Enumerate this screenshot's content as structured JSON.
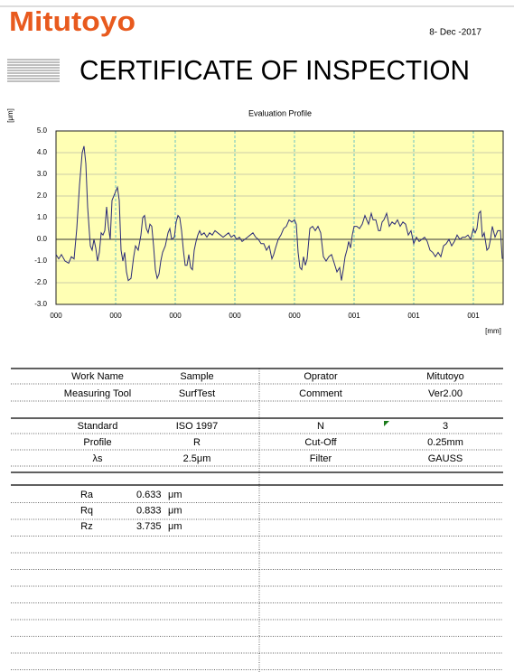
{
  "header": {
    "logo": "Mitutoyo",
    "date": "8- Dec -2017",
    "title": "CERTIFICATE OF INSPECTION"
  },
  "chart_data": {
    "type": "line",
    "title": "Evaluation Profile",
    "x_label": "[mm]",
    "y_label": "[μm]",
    "color": "#2b2b78",
    "plot_background": "#ffffb4",
    "grid": true,
    "xlim": [
      0,
      495
    ],
    "ylim": [
      -3,
      5
    ],
    "xticks": [
      {
        "value": 0,
        "label": "000"
      },
      {
        "value": 66,
        "label": "000"
      },
      {
        "value": 132,
        "label": "000"
      },
      {
        "value": 198,
        "label": "000"
      },
      {
        "value": 264,
        "label": "000"
      },
      {
        "value": 330,
        "label": "001"
      },
      {
        "value": 396,
        "label": "001"
      },
      {
        "value": 462,
        "label": "001"
      }
    ],
    "yticks": [
      {
        "value": 5,
        "label": "5.0"
      },
      {
        "value": 4,
        "label": "4.0"
      },
      {
        "value": 3,
        "label": "3.0"
      },
      {
        "value": 2,
        "label": "2.0"
      },
      {
        "value": 1,
        "label": "1.0"
      },
      {
        "value": 0,
        "label": "0.0"
      },
      {
        "value": -1,
        "label": "-1.0"
      },
      {
        "value": -2,
        "label": "-2.0"
      },
      {
        "value": -3,
        "label": "-3.0"
      }
    ],
    "x": [
      0,
      3,
      6,
      10,
      14,
      17,
      20,
      23,
      26,
      29,
      31,
      33,
      35,
      38,
      40,
      42,
      44,
      46,
      48,
      50,
      52,
      54,
      56,
      58,
      60,
      62,
      64,
      66,
      68,
      70,
      72,
      74,
      76,
      78,
      80,
      83,
      86,
      88,
      91,
      94,
      96,
      98,
      100,
      102,
      104,
      106,
      108,
      110,
      112,
      114,
      116,
      118,
      121,
      124,
      126,
      128,
      131,
      133,
      135,
      137,
      139,
      141,
      143,
      145,
      147,
      149,
      151,
      153,
      155,
      157,
      159,
      161,
      164,
      167,
      170,
      173,
      176,
      179,
      182,
      185,
      188,
      191,
      194,
      197,
      200,
      203,
      206,
      209,
      212,
      215,
      218,
      221,
      224,
      227,
      230,
      233,
      236,
      239,
      241,
      243,
      246,
      249,
      252,
      255,
      258,
      261,
      264,
      266,
      268,
      270,
      272,
      274,
      276,
      278,
      281,
      284,
      287,
      290,
      293,
      296,
      299,
      302,
      305,
      308,
      311,
      314,
      316,
      318,
      320,
      322,
      324,
      326,
      328,
      330,
      333,
      336,
      339,
      342,
      344,
      346,
      349,
      351,
      354,
      357,
      359,
      361,
      363,
      366,
      369,
      372,
      375,
      378,
      381,
      384,
      387,
      390,
      393,
      396,
      399,
      402,
      405,
      408,
      411,
      414,
      417,
      420,
      423,
      426,
      429,
      432,
      435,
      438,
      441,
      444,
      447,
      450,
      453,
      456,
      459,
      462,
      464,
      466,
      468,
      470,
      472,
      474,
      477,
      479,
      481,
      483,
      486,
      489,
      492,
      494
    ],
    "values": [
      -0.7,
      -0.9,
      -0.7,
      -1.0,
      -1.1,
      -0.8,
      -0.9,
      0.5,
      2.5,
      4.0,
      4.3,
      3.5,
      1.5,
      -0.3,
      -0.5,
      0.0,
      -0.4,
      -1.0,
      -0.6,
      0.3,
      0.2,
      0.4,
      1.5,
      0.6,
      0.0,
      1.8,
      2.0,
      2.2,
      2.4,
      1.8,
      -0.5,
      -1.0,
      -0.6,
      -1.5,
      -1.9,
      -1.8,
      -0.8,
      -0.3,
      -0.5,
      0.2,
      1.0,
      1.1,
      0.5,
      0.3,
      0.7,
      0.6,
      -0.3,
      -1.4,
      -1.8,
      -1.6,
      -1.0,
      -0.6,
      -0.3,
      0.3,
      0.5,
      0.0,
      0.1,
      0.8,
      1.1,
      1.0,
      0.4,
      -0.5,
      -1.2,
      -1.2,
      -0.7,
      -1.3,
      -1.4,
      -0.5,
      -0.1,
      0.2,
      0.4,
      0.2,
      0.3,
      0.1,
      0.3,
      0.2,
      0.4,
      0.3,
      0.2,
      0.1,
      0.2,
      0.3,
      0.1,
      0.2,
      0.0,
      0.1,
      -0.1,
      0.0,
      0.1,
      0.2,
      0.3,
      0.1,
      0.0,
      -0.2,
      -0.2,
      -0.5,
      -0.3,
      -0.9,
      -0.7,
      -0.4,
      0.0,
      0.2,
      0.5,
      0.6,
      0.9,
      0.8,
      0.9,
      0.7,
      -0.6,
      -1.3,
      -1.4,
      -0.8,
      -1.2,
      -0.9,
      0.5,
      0.6,
      0.4,
      0.6,
      0.3,
      -0.8,
      -1.0,
      -0.8,
      -0.7,
      -1.1,
      -1.5,
      -1.3,
      -1.9,
      -1.4,
      -0.8,
      -0.5,
      -0.1,
      -0.4,
      0.2,
      0.6,
      0.6,
      0.5,
      0.7,
      1.1,
      0.9,
      0.7,
      1.2,
      0.9,
      0.9,
      0.4,
      0.4,
      0.8,
      0.9,
      1.2,
      0.6,
      0.8,
      0.7,
      0.9,
      0.6,
      0.8,
      0.7,
      0.2,
      0.4,
      -0.2,
      0.1,
      -0.1,
      0.0,
      0.1,
      -0.1,
      -0.5,
      -0.6,
      -0.8,
      -0.6,
      -0.8,
      -0.3,
      -0.2,
      0.0,
      -0.3,
      -0.1,
      0.2,
      0.0,
      0.1,
      0.1,
      0.2,
      0.0,
      0.5,
      0.3,
      0.5,
      1.2,
      1.3,
      0.1,
      0.3,
      -0.5,
      -0.4,
      0.0,
      0.6,
      0.1,
      0.4,
      0.4,
      -0.9
    ]
  },
  "info": {
    "rows": [
      [
        "Work Name",
        "Sample",
        "Oprator",
        "Mitutoyo"
      ],
      [
        "Measuring Tool",
        "SurfTest",
        "Comment",
        "Ver2.00"
      ]
    ]
  },
  "conditions": {
    "rows": [
      [
        "Standard",
        "ISO 1997",
        "N",
        "3"
      ],
      [
        "Profile",
        "R",
        "Cut-Off",
        "0.25mm"
      ],
      [
        "λs",
        "2.5μm",
        "Filter",
        "GAUSS"
      ]
    ]
  },
  "results": {
    "rows": [
      [
        "Ra",
        "0.633",
        "μm"
      ],
      [
        "Rq",
        "0.833",
        "μm"
      ],
      [
        "Rz",
        "3.735",
        "μm"
      ]
    ]
  }
}
